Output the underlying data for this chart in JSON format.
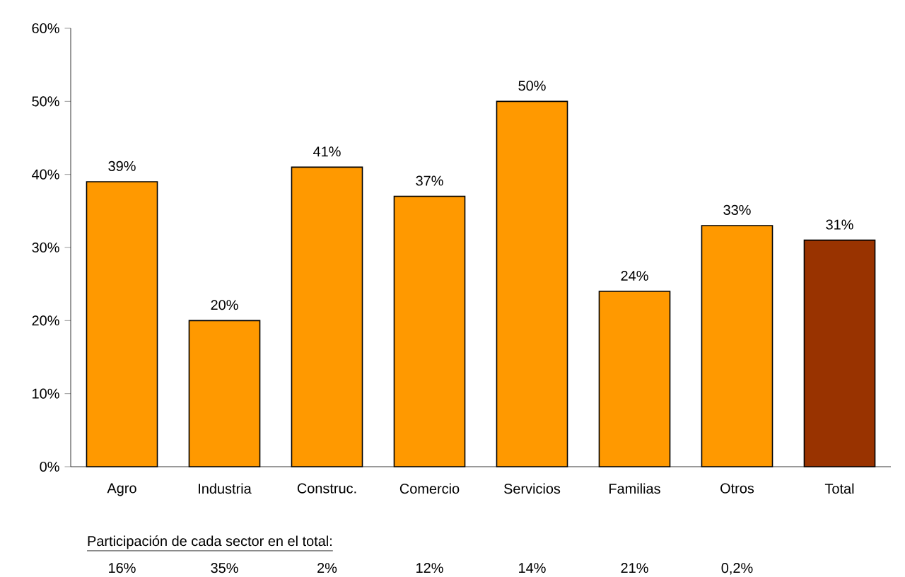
{
  "chart_data": {
    "type": "bar",
    "categories": [
      "Agro",
      "Industria",
      "Construc.",
      "Comercio",
      "Servicios",
      "Familias",
      "Otros",
      "Total"
    ],
    "values": [
      39,
      20,
      41,
      37,
      50,
      24,
      33,
      31
    ],
    "value_labels": [
      "39%",
      "20%",
      "41%",
      "37%",
      "50%",
      "24%",
      "33%",
      "31%"
    ],
    "colors": [
      "#ff9900",
      "#ff9900",
      "#ff9900",
      "#ff9900",
      "#ff9900",
      "#ff9900",
      "#ff9900",
      "#993300"
    ],
    "ylim": [
      0,
      60
    ],
    "yticks": [
      {
        "value": 0,
        "label": "0%"
      },
      {
        "value": 10,
        "label": "10%"
      },
      {
        "value": 20,
        "label": "20%"
      },
      {
        "value": 30,
        "label": "30%"
      },
      {
        "value": 40,
        "label": "40%"
      },
      {
        "value": 50,
        "label": "50%"
      },
      {
        "value": 60,
        "label": "60%"
      }
    ],
    "grid": false,
    "annotations": [
      "Participación de cada sector en el total:",
      "16%",
      "35%",
      "2%",
      "12%",
      "14%",
      "21%",
      "0,2%"
    ]
  }
}
